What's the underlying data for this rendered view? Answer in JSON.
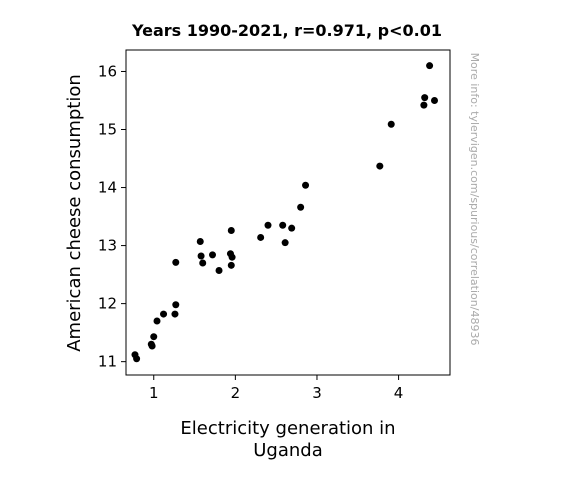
{
  "chart_data": {
    "type": "scatter",
    "title": "Years 1990-2021, r=0.971, p<0.01",
    "xlabel_lines": [
      "Electricity generation in",
      "Uganda"
    ],
    "ylabel": "American cheese consumption",
    "source_note": "More info: tylervigen.com/spurious/correlation/48936",
    "xlim": [
      0.66,
      4.63
    ],
    "ylim": [
      10.77,
      16.37
    ],
    "xticks": [
      1,
      2,
      3,
      4
    ],
    "yticks": [
      11,
      12,
      13,
      14,
      15,
      16
    ],
    "grid": false,
    "point_color": "#000000",
    "points": [
      {
        "x": 0.77,
        "y": 11.12
      },
      {
        "x": 0.79,
        "y": 11.05
      },
      {
        "x": 0.97,
        "y": 11.3
      },
      {
        "x": 0.98,
        "y": 11.27
      },
      {
        "x": 1.0,
        "y": 11.43
      },
      {
        "x": 1.04,
        "y": 11.7
      },
      {
        "x": 1.12,
        "y": 11.82
      },
      {
        "x": 1.26,
        "y": 11.82
      },
      {
        "x": 1.27,
        "y": 11.98
      },
      {
        "x": 1.27,
        "y": 12.71
      },
      {
        "x": 1.57,
        "y": 13.07
      },
      {
        "x": 1.58,
        "y": 12.82
      },
      {
        "x": 1.6,
        "y": 12.7
      },
      {
        "x": 1.72,
        "y": 12.84
      },
      {
        "x": 1.8,
        "y": 12.57
      },
      {
        "x": 1.94,
        "y": 12.86
      },
      {
        "x": 1.95,
        "y": 12.66
      },
      {
        "x": 1.96,
        "y": 12.8
      },
      {
        "x": 1.95,
        "y": 13.26
      },
      {
        "x": 2.31,
        "y": 13.14
      },
      {
        "x": 2.4,
        "y": 13.35
      },
      {
        "x": 2.58,
        "y": 13.35
      },
      {
        "x": 2.61,
        "y": 13.05
      },
      {
        "x": 2.69,
        "y": 13.3
      },
      {
        "x": 2.8,
        "y": 13.66
      },
      {
        "x": 2.86,
        "y": 14.04
      },
      {
        "x": 3.77,
        "y": 14.37
      },
      {
        "x": 3.91,
        "y": 15.09
      },
      {
        "x": 4.31,
        "y": 15.42
      },
      {
        "x": 4.32,
        "y": 15.55
      },
      {
        "x": 4.38,
        "y": 16.1
      },
      {
        "x": 4.44,
        "y": 15.5
      }
    ]
  }
}
